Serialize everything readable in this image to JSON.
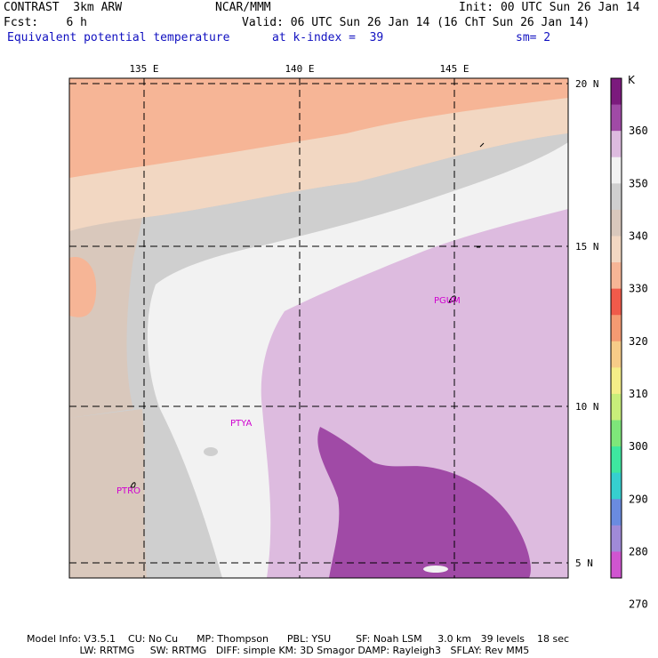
{
  "header": {
    "model": "CONTRAST  3km ARW",
    "org": "NCAR/MMM",
    "init": "Init: 00 UTC Sun 26 Jan 14",
    "fcst": "Fcst:    6 h",
    "valid": "Valid: 06 UTC Sun 26 Jan 14 (16 ChT Sun 26 Jan 14)",
    "field": "Equivalent potential temperature",
    "level": "at k-index =  39",
    "smooth": "sm= 2"
  },
  "map": {
    "lon_labels": [
      "135 E",
      "140 E",
      "145 E"
    ],
    "lat_labels": [
      "20 N",
      "15 N",
      "10 N",
      "5 N"
    ],
    "stations": [
      "PGUM",
      "PTYA",
      "PTRO"
    ]
  },
  "colorbar": {
    "unit": "K",
    "labels": [
      "360",
      "350",
      "340",
      "330",
      "320",
      "310",
      "300",
      "290",
      "280",
      "270"
    ],
    "colors": [
      "#7b1a7d",
      "#a04aa6",
      "#ddbbdf",
      "#f2f2f2",
      "#cfcfcf",
      "#d9c8bc",
      "#f2d7c2",
      "#f6b596",
      "#f05a4a",
      "#f59a72",
      "#f7cc88",
      "#f5ee88",
      "#c8ee7a",
      "#7ee67a",
      "#3ee6a0",
      "#36cfcf",
      "#6a8be0",
      "#a08ad8",
      "#d055d0"
    ]
  },
  "footer": {
    "line1": "Model Info: V3.5.1    CU: No Cu      MP: Thompson      PBL: YSU        SF: Noah LSM     3.0 km   39 levels    18 sec",
    "line2": "                 LW: RRTMG     SW: RRTMG   DIFF: simple KM: 3D Smagor DAMP: Rayleigh3   SFLAY: Rev MM5"
  }
}
